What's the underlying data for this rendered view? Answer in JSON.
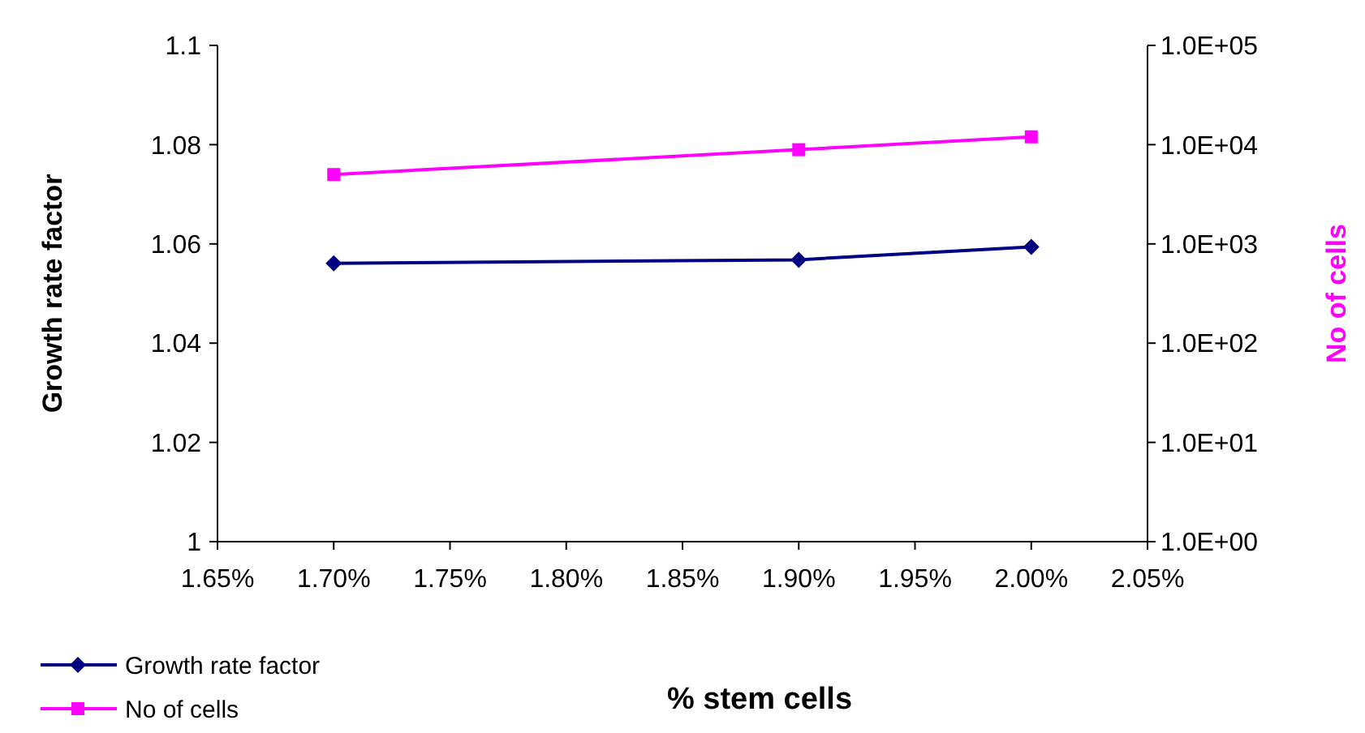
{
  "chart_data": {
    "type": "line",
    "xlabel": "% stem cells",
    "ylabel": "Growth rate factor",
    "y2label": "No of cells",
    "x": [
      1.7,
      1.9,
      2.0
    ],
    "series": [
      {
        "name": "Growth rate factor",
        "color": "#000080",
        "values": [
          1.0561,
          1.0568,
          1.0594
        ],
        "marker": "diamond"
      },
      {
        "name": "No of cells",
        "color": "#ff00ff",
        "values": [
          5000,
          8900,
          12000
        ],
        "marker": "square",
        "axis": "y2"
      }
    ],
    "xlim": [
      1.65,
      2.05
    ],
    "xticks": [
      {
        "value": 1.65,
        "label": "1.65%"
      },
      {
        "value": 1.7,
        "label": "1.70%"
      },
      {
        "value": 1.75,
        "label": "1.75%"
      },
      {
        "value": 1.8,
        "label": "1.80%"
      },
      {
        "value": 1.85,
        "label": "1.85%"
      },
      {
        "value": 1.9,
        "label": "1.90%"
      },
      {
        "value": 1.95,
        "label": "1.95%"
      },
      {
        "value": 2.0,
        "label": "2.00%"
      },
      {
        "value": 2.05,
        "label": "2.05%"
      }
    ],
    "ylim": [
      1,
      1.1
    ],
    "yticks": [
      1,
      1.02,
      1.04,
      1.06,
      1.08,
      1.1
    ],
    "y2lim": [
      1,
      100000
    ],
    "y2ticks": [
      {
        "value": 1,
        "label": "1.0E+00"
      },
      {
        "value": 10,
        "label": "1.0E+01"
      },
      {
        "value": 100,
        "label": "1.0E+02"
      },
      {
        "value": 1000,
        "label": "1.0E+03"
      },
      {
        "value": 10000,
        "label": "1.0E+04"
      },
      {
        "value": 100000,
        "label": "1.0E+05"
      }
    ],
    "log": "y2",
    "grid": false,
    "legend": "bottom left"
  }
}
